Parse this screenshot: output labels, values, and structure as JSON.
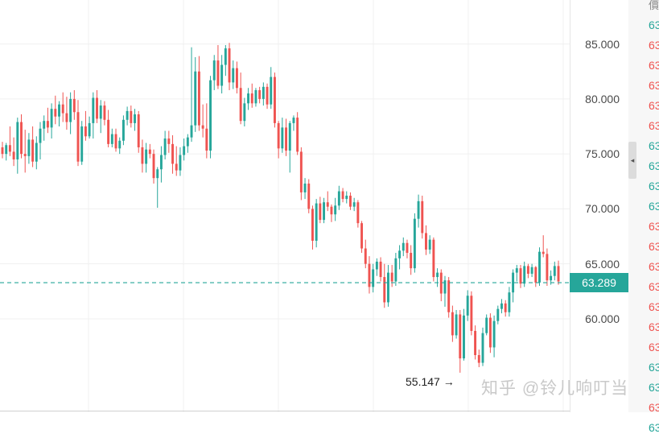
{
  "chart_data": {
    "type": "candlestick",
    "ylim": [
      51.5,
      89.0
    ],
    "y_ticks": [
      "85.000",
      "80.000",
      "75.000",
      "70.000",
      "65.000",
      "60.000"
    ],
    "current_price": 63.289,
    "current_price_label": "63.289",
    "min_annotation": "55.147 →",
    "colors": {
      "up": "#26a69a",
      "down": "#ef5350",
      "grid": "#f0f0f0"
    },
    "candles": [
      [
        75.6,
        76.1,
        74.6,
        75.0
      ],
      [
        75.0,
        76.0,
        74.4,
        75.8
      ],
      [
        75.8,
        77.5,
        74.8,
        75.2
      ],
      [
        75.2,
        76.5,
        73.9,
        74.5
      ],
      [
        74.5,
        78.3,
        73.2,
        77.9
      ],
      [
        77.9,
        78.6,
        74.6,
        75.0
      ],
      [
        75.0,
        77.2,
        73.3,
        74.8
      ],
      [
        74.8,
        76.9,
        74.1,
        76.3
      ],
      [
        76.3,
        77.5,
        73.8,
        74.3
      ],
      [
        74.3,
        76.6,
        73.6,
        76.0
      ],
      [
        76.0,
        77.9,
        74.5,
        77.3
      ],
      [
        77.3,
        78.5,
        76.2,
        78.0
      ],
      [
        78.0,
        79.2,
        76.9,
        77.4
      ],
      [
        77.4,
        79.6,
        76.4,
        79.1
      ],
      [
        79.1,
        80.3,
        77.7,
        78.4
      ],
      [
        78.4,
        79.8,
        77.5,
        79.5
      ],
      [
        79.5,
        80.6,
        77.9,
        78.7
      ],
      [
        78.7,
        80.2,
        77.2,
        77.9
      ],
      [
        77.9,
        80.6,
        76.8,
        80.0
      ],
      [
        80.0,
        80.8,
        78.1,
        78.8
      ],
      [
        78.8,
        79.9,
        73.9,
        74.3
      ],
      [
        74.3,
        78.0,
        74.0,
        77.5
      ],
      [
        77.5,
        78.9,
        76.2,
        76.6
      ],
      [
        76.6,
        78.4,
        76.4,
        77.8
      ],
      [
        77.8,
        80.6,
        76.4,
        80.1
      ],
      [
        80.1,
        80.8,
        77.8,
        78.2
      ],
      [
        78.2,
        79.9,
        76.9,
        79.4
      ],
      [
        79.4,
        79.8,
        77.6,
        78.1
      ],
      [
        78.1,
        79.0,
        75.6,
        75.9
      ],
      [
        75.9,
        77.3,
        75.6,
        76.8
      ],
      [
        76.8,
        77.3,
        75.2,
        75.5
      ],
      [
        75.5,
        76.5,
        75.0,
        76.2
      ],
      [
        76.2,
        78.5,
        75.8,
        78.1
      ],
      [
        78.1,
        79.3,
        77.6,
        78.9
      ],
      [
        78.9,
        79.4,
        77.4,
        77.8
      ],
      [
        77.8,
        79.1,
        77.1,
        78.6
      ],
      [
        78.6,
        78.9,
        75.1,
        75.6
      ],
      [
        75.6,
        76.3,
        73.3,
        74.1
      ],
      [
        74.1,
        76.0,
        73.3,
        75.4
      ],
      [
        75.4,
        75.9,
        74.6,
        75.0
      ],
      [
        75.0,
        75.4,
        72.3,
        72.8
      ],
      [
        72.8,
        73.8,
        70.1,
        73.6
      ],
      [
        73.6,
        75.7,
        72.4,
        74.9
      ],
      [
        74.9,
        77.1,
        74.5,
        76.4
      ],
      [
        76.4,
        77.1,
        75.1,
        75.9
      ],
      [
        75.9,
        76.7,
        73.2,
        74.1
      ],
      [
        74.1,
        75.7,
        73.0,
        73.5
      ],
      [
        73.5,
        75.6,
        73.0,
        74.9
      ],
      [
        74.9,
        76.4,
        74.4,
        75.7
      ],
      [
        75.7,
        76.8,
        75.1,
        76.5
      ],
      [
        76.5,
        84.7,
        76.1,
        77.6
      ],
      [
        77.6,
        83.8,
        77.0,
        82.5
      ],
      [
        82.5,
        83.9,
        77.1,
        77.6
      ],
      [
        77.6,
        79.5,
        76.5,
        77.3
      ],
      [
        77.3,
        79.6,
        74.6,
        75.3
      ],
      [
        75.3,
        82.1,
        74.6,
        81.7
      ],
      [
        81.7,
        84.0,
        80.8,
        83.5
      ],
      [
        83.5,
        84.9,
        80.9,
        81.2
      ],
      [
        81.2,
        84.0,
        80.5,
        83.1
      ],
      [
        83.1,
        84.9,
        82.1,
        84.6
      ],
      [
        84.6,
        85.1,
        80.8,
        81.5
      ],
      [
        81.5,
        83.5,
        80.9,
        82.8
      ],
      [
        82.8,
        83.4,
        80.5,
        81.0
      ],
      [
        81.0,
        82.4,
        77.7,
        78.0
      ],
      [
        78.0,
        80.1,
        77.5,
        79.6
      ],
      [
        79.6,
        81.0,
        79.0,
        80.5
      ],
      [
        80.5,
        81.4,
        79.2,
        79.6
      ],
      [
        79.6,
        81.0,
        79.3,
        80.8
      ],
      [
        80.8,
        81.1,
        79.6,
        80.0
      ],
      [
        80.0,
        81.5,
        79.4,
        81.1
      ],
      [
        81.1,
        81.4,
        79.1,
        79.5
      ],
      [
        79.5,
        82.9,
        79.1,
        82.0
      ],
      [
        82.0,
        82.4,
        77.4,
        77.8
      ],
      [
        77.8,
        78.0,
        74.6,
        75.5
      ],
      [
        75.5,
        78.3,
        75.1,
        77.4
      ],
      [
        77.4,
        78.2,
        74.8,
        75.3
      ],
      [
        75.3,
        78.0,
        73.3,
        77.8
      ],
      [
        77.8,
        78.5,
        77.1,
        78.3
      ],
      [
        78.3,
        78.8,
        74.9,
        75.2
      ],
      [
        75.2,
        75.6,
        70.8,
        71.5
      ],
      [
        71.5,
        72.8,
        70.9,
        72.3
      ],
      [
        72.3,
        72.7,
        69.6,
        70.0
      ],
      [
        70.0,
        70.3,
        66.3,
        67.1
      ],
      [
        67.1,
        70.9,
        66.5,
        70.5
      ],
      [
        70.5,
        71.1,
        68.7,
        69.0
      ],
      [
        69.0,
        71.0,
        68.7,
        70.6
      ],
      [
        70.6,
        71.6,
        69.8,
        70.2
      ],
      [
        70.2,
        70.4,
        68.8,
        69.5
      ],
      [
        69.5,
        71.0,
        68.9,
        70.3
      ],
      [
        70.3,
        72.1,
        69.9,
        71.6
      ],
      [
        71.6,
        71.9,
        70.6,
        70.9
      ],
      [
        70.9,
        71.6,
        70.5,
        71.2
      ],
      [
        71.2,
        71.5,
        69.9,
        70.2
      ],
      [
        70.2,
        71.0,
        69.8,
        70.6
      ],
      [
        70.6,
        70.8,
        68.3,
        68.7
      ],
      [
        68.7,
        68.9,
        66.0,
        66.4
      ],
      [
        66.4,
        67.2,
        64.6,
        65.0
      ],
      [
        65.0,
        65.7,
        62.3,
        62.9
      ],
      [
        62.9,
        65.0,
        62.4,
        64.5
      ],
      [
        64.5,
        65.5,
        63.9,
        65.2
      ],
      [
        65.2,
        65.6,
        63.4,
        63.8
      ],
      [
        63.8,
        65.0,
        61.0,
        61.5
      ],
      [
        61.5,
        64.9,
        61.1,
        64.2
      ],
      [
        64.2,
        64.9,
        62.9,
        63.4
      ],
      [
        63.4,
        66.0,
        63.0,
        65.5
      ],
      [
        65.5,
        66.7,
        64.5,
        66.2
      ],
      [
        66.2,
        67.4,
        65.7,
        66.9
      ],
      [
        66.9,
        67.2,
        65.5,
        66.0
      ],
      [
        66.0,
        66.7,
        64.0,
        64.6
      ],
      [
        64.6,
        69.6,
        64.2,
        69.1
      ],
      [
        69.1,
        71.3,
        68.3,
        70.7
      ],
      [
        70.7,
        71.2,
        67.3,
        67.8
      ],
      [
        67.8,
        68.5,
        65.8,
        66.3
      ],
      [
        66.3,
        67.6,
        65.9,
        67.2
      ],
      [
        67.2,
        67.4,
        63.4,
        63.8
      ],
      [
        63.8,
        64.6,
        62.9,
        64.2
      ],
      [
        64.2,
        64.5,
        61.6,
        62.3
      ],
      [
        62.3,
        63.9,
        61.1,
        63.5
      ],
      [
        63.5,
        63.8,
        60.1,
        60.6
      ],
      [
        60.6,
        61.2,
        57.9,
        58.5
      ],
      [
        58.5,
        60.8,
        58.2,
        60.4
      ],
      [
        60.4,
        60.8,
        55.1,
        56.4
      ],
      [
        56.4,
        60.9,
        56.2,
        60.3
      ],
      [
        60.3,
        62.6,
        59.8,
        62.1
      ],
      [
        62.1,
        62.5,
        58.5,
        58.9
      ],
      [
        58.9,
        59.4,
        56.3,
        56.7
      ],
      [
        56.7,
        57.2,
        55.6,
        56.0
      ],
      [
        56.0,
        59.2,
        55.7,
        58.7
      ],
      [
        58.7,
        60.4,
        58.5,
        60.1
      ],
      [
        60.1,
        60.5,
        56.9,
        57.4
      ],
      [
        57.4,
        60.3,
        56.5,
        59.8
      ],
      [
        59.8,
        61.2,
        59.5,
        60.9
      ],
      [
        60.9,
        61.8,
        60.5,
        61.4
      ],
      [
        61.4,
        61.7,
        60.2,
        60.6
      ],
      [
        60.6,
        62.9,
        60.2,
        62.4
      ],
      [
        62.4,
        64.5,
        61.5,
        64.2
      ],
      [
        64.2,
        64.9,
        63.4,
        64.6
      ],
      [
        64.6,
        64.9,
        62.8,
        63.2
      ],
      [
        63.2,
        65.2,
        62.9,
        64.8
      ],
      [
        64.8,
        65.0,
        63.7,
        64.1
      ],
      [
        64.1,
        65.0,
        63.8,
        64.7
      ],
      [
        64.7,
        64.8,
        62.9,
        63.3
      ],
      [
        63.3,
        66.5,
        63.0,
        66.1
      ],
      [
        66.1,
        67.6,
        65.6,
        65.9
      ],
      [
        65.9,
        66.4,
        63.0,
        63.5
      ],
      [
        63.5,
        64.4,
        63.1,
        63.9
      ],
      [
        63.9,
        65.2,
        63.5,
        64.8
      ],
      [
        64.8,
        65.3,
        63.1,
        63.4
      ]
    ]
  },
  "price_axis": {
    "labels": [
      "85.000",
      "80.000",
      "75.000",
      "70.000",
      "65.000",
      "60.000"
    ]
  },
  "side_panel": {
    "header": "價",
    "rows": [
      {
        "text": "63",
        "dir": "up"
      },
      {
        "text": "63",
        "dir": "down"
      },
      {
        "text": "63",
        "dir": "down"
      },
      {
        "text": "63",
        "dir": "down"
      },
      {
        "text": "63",
        "dir": "down"
      },
      {
        "text": "63",
        "dir": "down"
      },
      {
        "text": "63",
        "dir": "up"
      },
      {
        "text": "63",
        "dir": "up"
      },
      {
        "text": "63",
        "dir": "up"
      },
      {
        "text": "63",
        "dir": "up"
      },
      {
        "text": "63",
        "dir": "down"
      },
      {
        "text": "63",
        "dir": "down"
      },
      {
        "text": "63",
        "dir": "down"
      },
      {
        "text": "63",
        "dir": "down"
      },
      {
        "text": "63",
        "dir": "down"
      },
      {
        "text": "63",
        "dir": "down"
      },
      {
        "text": "63",
        "dir": "down"
      },
      {
        "text": "63",
        "dir": "up"
      },
      {
        "text": "63",
        "dir": "up"
      },
      {
        "text": "63",
        "dir": "down"
      },
      {
        "text": "63",
        "dir": "up"
      }
    ],
    "collapse_icon": "chevron-left-icon"
  },
  "watermark": "知乎 @铃儿响叮当"
}
